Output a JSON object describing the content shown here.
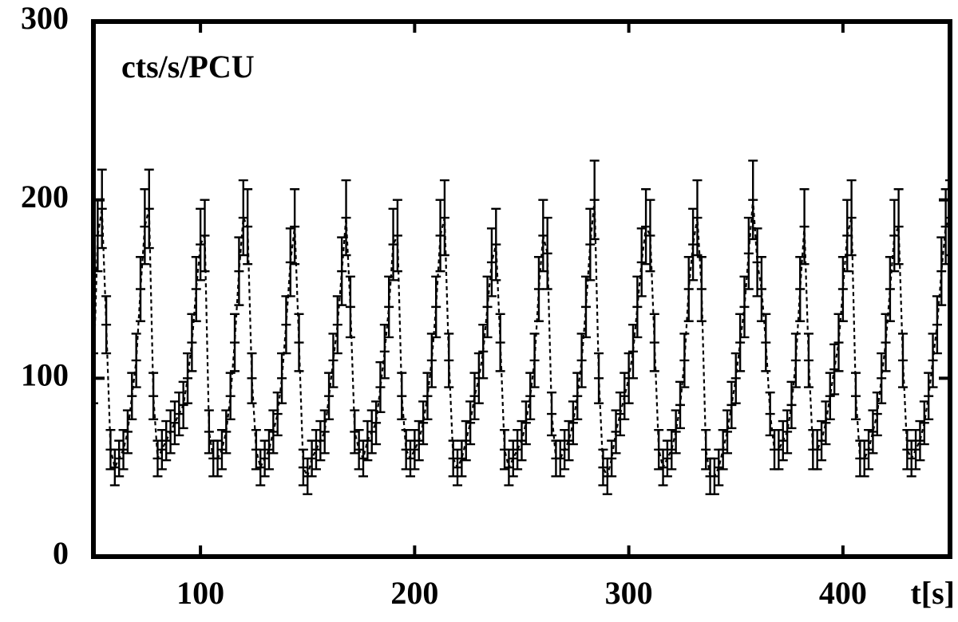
{
  "chart_data": {
    "type": "errorbar",
    "annotation": "cts/s/PCU",
    "xlabel": "t[s]",
    "xlim": [
      50,
      450
    ],
    "ylim": [
      0,
      300
    ],
    "xticks": [
      100,
      200,
      300,
      400
    ],
    "yticks": [
      0,
      100,
      200,
      300
    ],
    "color": "#000000",
    "x": [
      50,
      52,
      54,
      56,
      58,
      60,
      62,
      64,
      66,
      68,
      70,
      72,
      74,
      76,
      78,
      80,
      82,
      84,
      86,
      88,
      90,
      92,
      94,
      96,
      98,
      100,
      102,
      104,
      106,
      108,
      110,
      112,
      114,
      116,
      118,
      120,
      122,
      124,
      126,
      128,
      130,
      132,
      134,
      136,
      138,
      140,
      142,
      144,
      146,
      148,
      150,
      152,
      154,
      156,
      158,
      160,
      162,
      164,
      166,
      168,
      170,
      172,
      174,
      176,
      178,
      180,
      182,
      184,
      186,
      188,
      190,
      192,
      194,
      196,
      198,
      200,
      202,
      204,
      206,
      208,
      210,
      212,
      214,
      216,
      218,
      220,
      222,
      224,
      226,
      228,
      230,
      232,
      234,
      236,
      238,
      240,
      242,
      244,
      246,
      248,
      250,
      252,
      254,
      256,
      258,
      260,
      262,
      264,
      266,
      268,
      270,
      272,
      274,
      276,
      278,
      280,
      282,
      284,
      286,
      288,
      290,
      292,
      294,
      296,
      298,
      300,
      302,
      304,
      306,
      308,
      310,
      312,
      314,
      316,
      318,
      320,
      322,
      324,
      326,
      328,
      330,
      332,
      334,
      336,
      338,
      340,
      342,
      344,
      346,
      348,
      350,
      352,
      354,
      356,
      358,
      360,
      362,
      364,
      366,
      368,
      370,
      372,
      374,
      376,
      378,
      380,
      382,
      384,
      386,
      388,
      390,
      392,
      394,
      396,
      398,
      400,
      402,
      404,
      406,
      408,
      410,
      412,
      414,
      416,
      418,
      420,
      422,
      424,
      426,
      428,
      430,
      432,
      434,
      436,
      438,
      440,
      442,
      444,
      446,
      448,
      450
    ],
    "values": [
      100,
      180,
      195,
      130,
      60,
      50,
      55,
      60,
      70,
      90,
      110,
      150,
      185,
      195,
      90,
      55,
      60,
      65,
      70,
      75,
      80,
      85,
      100,
      120,
      150,
      175,
      180,
      70,
      55,
      55,
      60,
      70,
      90,
      120,
      160,
      190,
      185,
      100,
      60,
      50,
      55,
      60,
      70,
      80,
      100,
      130,
      165,
      185,
      120,
      50,
      45,
      55,
      60,
      65,
      70,
      90,
      110,
      130,
      160,
      190,
      140,
      70,
      60,
      55,
      65,
      70,
      75,
      95,
      115,
      140,
      175,
      180,
      90,
      60,
      55,
      60,
      65,
      75,
      90,
      110,
      140,
      180,
      190,
      110,
      55,
      50,
      55,
      65,
      75,
      90,
      100,
      115,
      140,
      165,
      175,
      120,
      60,
      50,
      55,
      60,
      65,
      75,
      90,
      110,
      150,
      180,
      170,
      80,
      55,
      55,
      60,
      65,
      75,
      90,
      110,
      140,
      175,
      200,
      100,
      50,
      45,
      55,
      70,
      80,
      90,
      100,
      115,
      140,
      165,
      185,
      180,
      120,
      60,
      50,
      55,
      60,
      70,
      85,
      110,
      150,
      175,
      190,
      150,
      60,
      45,
      45,
      50,
      60,
      70,
      85,
      100,
      120,
      140,
      170,
      200,
      165,
      150,
      120,
      80,
      60,
      60,
      65,
      70,
      85,
      110,
      150,
      185,
      110,
      60,
      60,
      65,
      75,
      90,
      105,
      120,
      150,
      180,
      190,
      90,
      55,
      55,
      60,
      70,
      80,
      100,
      120,
      150,
      180,
      185,
      110,
      60,
      55,
      60,
      65,
      75,
      90,
      110,
      130,
      160,
      185,
      190
    ],
    "errors": [
      14,
      20,
      22,
      16,
      11,
      10,
      10,
      11,
      12,
      13,
      15,
      18,
      21,
      22,
      13,
      10,
      11,
      11,
      12,
      12,
      12,
      13,
      14,
      16,
      18,
      20,
      20,
      12,
      10,
      10,
      11,
      12,
      13,
      16,
      19,
      21,
      21,
      14,
      11,
      10,
      10,
      11,
      12,
      12,
      14,
      16,
      19,
      21,
      16,
      10,
      10,
      10,
      11,
      11,
      12,
      13,
      15,
      16,
      19,
      21,
      17,
      12,
      11,
      10,
      11,
      12,
      12,
      14,
      15,
      17,
      20,
      20,
      13,
      11,
      10,
      11,
      11,
      12,
      13,
      15,
      17,
      20,
      21,
      15,
      10,
      10,
      10,
      11,
      12,
      13,
      14,
      15,
      17,
      19,
      20,
      16,
      11,
      10,
      10,
      11,
      11,
      12,
      13,
      15,
      18,
      20,
      20,
      12,
      10,
      10,
      11,
      11,
      12,
      13,
      15,
      17,
      20,
      22,
      14,
      10,
      10,
      10,
      12,
      12,
      13,
      14,
      15,
      17,
      19,
      21,
      20,
      16,
      11,
      10,
      10,
      11,
      12,
      13,
      15,
      18,
      20,
      21,
      18,
      11,
      10,
      10,
      10,
      11,
      12,
      13,
      14,
      16,
      17,
      20,
      22,
      19,
      18,
      16,
      12,
      11,
      11,
      11,
      12,
      13,
      15,
      18,
      21,
      15,
      11,
      11,
      11,
      12,
      13,
      14,
      16,
      18,
      20,
      21,
      13,
      10,
      10,
      11,
      12,
      12,
      14,
      16,
      18,
      20,
      21,
      15,
      11,
      10,
      11,
      11,
      12,
      13,
      15,
      16,
      19,
      21,
      21
    ]
  }
}
